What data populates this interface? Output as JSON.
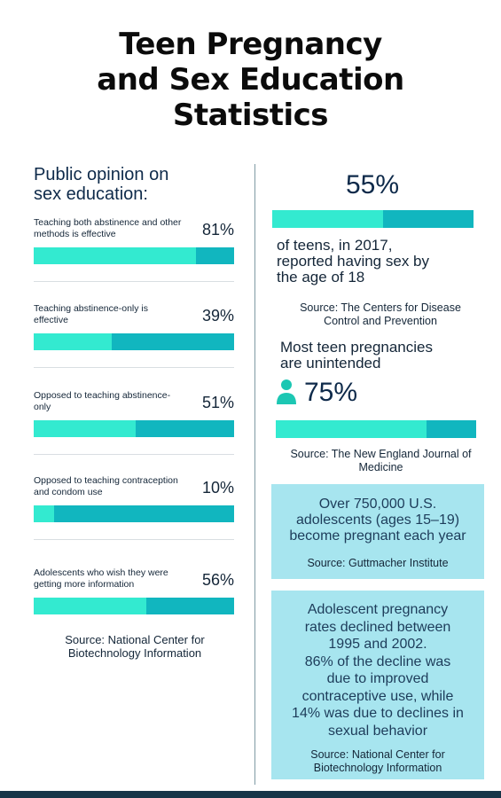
{
  "title_lines": [
    "Teen Pregnancy",
    "and Sex Education",
    "Statistics"
  ],
  "left": {
    "heading_lines": [
      "Public opinion on",
      "sex education:"
    ],
    "stats": [
      {
        "label": "Teaching both abstinence and other methods is effective",
        "percent": "81%",
        "value": 0.81
      },
      {
        "label": "Teaching abstinence-only is effective",
        "percent": "39%",
        "value": 0.39
      },
      {
        "label": "Opposed to teaching abstinence-only",
        "percent": "51%",
        "value": 0.51
      },
      {
        "label": "Opposed to teaching contraception and condom use",
        "percent": "10%",
        "value": 0.1
      },
      {
        "label": "Adolescents who wish they were getting more information",
        "percent": "56%",
        "value": 0.56
      }
    ],
    "source_lines": [
      "Source: National Center for",
      "Biotechnology Information"
    ]
  },
  "right": {
    "stat1": {
      "percent": "55%",
      "value": 0.55,
      "text_lines": [
        "of teens, in 2017,",
        "reported having sex by",
        "the age of 18"
      ],
      "source_lines": [
        "Source: The Centers for Disease",
        "Control and Prevention"
      ]
    },
    "stat2": {
      "heading_lines": [
        "Most teen pregnancies",
        "are unintended"
      ],
      "icon": "person-icon",
      "percent": "75%",
      "value": 0.75,
      "source_lines": [
        "Source: The New England Journal of",
        "Medicine"
      ]
    },
    "box1": {
      "text_lines": [
        "Over 750,000 U.S.",
        "adolescents (ages 15–19)",
        "become pregnant each year"
      ],
      "source": "Source: Guttmacher Institute"
    },
    "box2": {
      "text_lines": [
        "Adolescent pregnancy",
        "rates declined between",
        "1995 and 2002.",
        "86% of the decline was",
        "due to improved",
        "contraceptive use, while",
        "14% was due to declines in",
        "sexual behavior"
      ],
      "source_lines": [
        "Source: National Center for",
        "Biotechnology Information"
      ]
    }
  },
  "colors": {
    "fill": "#33ead0",
    "track": "#11b6bf",
    "box": "#a7e5ef",
    "footer": "#173548"
  }
}
